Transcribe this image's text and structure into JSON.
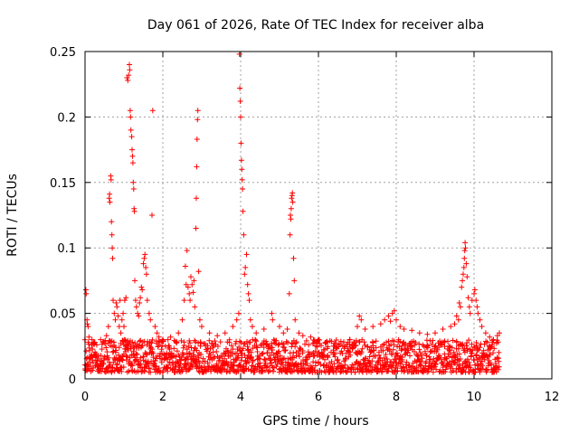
{
  "chart_data": {
    "type": "scatter",
    "title": "Day 061 of 2026, Rate Of TEC Index for receiver alba",
    "xlabel": "GPS time / hours",
    "ylabel": "ROTI / TECUs",
    "xlim": [
      0,
      12
    ],
    "ylim": [
      0,
      0.25
    ],
    "xticks": [
      0,
      2,
      4,
      6,
      8,
      10,
      12
    ],
    "yticks": [
      0,
      0.05,
      0.1,
      0.15,
      0.2,
      0.25
    ],
    "xtick_labels": [
      "0",
      "2",
      "4",
      "6",
      "8",
      "10",
      "12"
    ],
    "ytick_labels": [
      "0",
      "0.05",
      "0.1",
      "0.15",
      "0.2",
      "0.25"
    ],
    "grid": true,
    "marker": "+",
    "color": "#ff0000",
    "background_band": {
      "x_range": [
        0,
        10.65
      ],
      "y_low": 0.005,
      "y_high": 0.03,
      "x_step": 0.02,
      "points_per_step": 3
    },
    "series": [
      {
        "name": "ROTI",
        "points": [
          [
            0.02,
            0.068
          ],
          [
            0.03,
            0.065
          ],
          [
            0.05,
            0.045
          ],
          [
            0.06,
            0.042
          ],
          [
            0.08,
            0.04
          ],
          [
            0.1,
            0.032
          ],
          [
            0.18,
            0.03
          ],
          [
            0.25,
            0.028
          ],
          [
            0.3,
            0.026
          ],
          [
            0.4,
            0.03
          ],
          [
            0.55,
            0.033
          ],
          [
            0.6,
            0.04
          ],
          [
            0.62,
            0.138
          ],
          [
            0.63,
            0.141
          ],
          [
            0.64,
            0.135
          ],
          [
            0.66,
            0.155
          ],
          [
            0.67,
            0.152
          ],
          [
            0.68,
            0.12
          ],
          [
            0.69,
            0.11
          ],
          [
            0.7,
            0.1
          ],
          [
            0.71,
            0.092
          ],
          [
            0.72,
            0.06
          ],
          [
            0.75,
            0.05
          ],
          [
            0.78,
            0.045
          ],
          [
            0.8,
            0.058
          ],
          [
            0.82,
            0.055
          ],
          [
            0.85,
            0.048
          ],
          [
            0.88,
            0.04
          ],
          [
            0.9,
            0.06
          ],
          [
            0.92,
            0.035
          ],
          [
            0.95,
            0.045
          ],
          [
            0.98,
            0.05
          ],
          [
            1.0,
            0.04
          ],
          [
            1.02,
            0.06
          ],
          [
            1.05,
            0.062
          ],
          [
            1.08,
            0.23
          ],
          [
            1.1,
            0.228
          ],
          [
            1.12,
            0.232
          ],
          [
            1.14,
            0.24
          ],
          [
            1.15,
            0.236
          ],
          [
            1.16,
            0.205
          ],
          [
            1.17,
            0.2
          ],
          [
            1.18,
            0.19
          ],
          [
            1.2,
            0.185
          ],
          [
            1.21,
            0.175
          ],
          [
            1.22,
            0.17
          ],
          [
            1.23,
            0.165
          ],
          [
            1.24,
            0.15
          ],
          [
            1.25,
            0.145
          ],
          [
            1.26,
            0.13
          ],
          [
            1.27,
            0.128
          ],
          [
            1.28,
            0.075
          ],
          [
            1.3,
            0.06
          ],
          [
            1.32,
            0.055
          ],
          [
            1.35,
            0.05
          ],
          [
            1.38,
            0.048
          ],
          [
            1.4,
            0.058
          ],
          [
            1.42,
            0.062
          ],
          [
            1.45,
            0.07
          ],
          [
            1.47,
            0.068
          ],
          [
            1.5,
            0.088
          ],
          [
            1.52,
            0.092
          ],
          [
            1.54,
            0.095
          ],
          [
            1.56,
            0.085
          ],
          [
            1.58,
            0.08
          ],
          [
            1.6,
            0.06
          ],
          [
            1.65,
            0.05
          ],
          [
            1.68,
            0.045
          ],
          [
            1.72,
            0.125
          ],
          [
            1.74,
            0.205
          ],
          [
            1.8,
            0.04
          ],
          [
            1.85,
            0.035
          ],
          [
            1.9,
            0.032
          ],
          [
            2.0,
            0.03
          ],
          [
            2.2,
            0.032
          ],
          [
            2.4,
            0.035
          ],
          [
            2.5,
            0.045
          ],
          [
            2.55,
            0.06
          ],
          [
            2.58,
            0.086
          ],
          [
            2.6,
            0.072
          ],
          [
            2.62,
            0.098
          ],
          [
            2.65,
            0.07
          ],
          [
            2.68,
            0.065
          ],
          [
            2.7,
            0.06
          ],
          [
            2.72,
            0.078
          ],
          [
            2.75,
            0.072
          ],
          [
            2.78,
            0.066
          ],
          [
            2.8,
            0.075
          ],
          [
            2.82,
            0.055
          ],
          [
            2.85,
            0.115
          ],
          [
            2.86,
            0.138
          ],
          [
            2.87,
            0.162
          ],
          [
            2.88,
            0.183
          ],
          [
            2.89,
            0.198
          ],
          [
            2.9,
            0.205
          ],
          [
            2.92,
            0.082
          ],
          [
            2.95,
            0.045
          ],
          [
            3.0,
            0.04
          ],
          [
            3.2,
            0.035
          ],
          [
            3.4,
            0.033
          ],
          [
            3.6,
            0.035
          ],
          [
            3.8,
            0.04
          ],
          [
            3.9,
            0.045
          ],
          [
            3.95,
            0.05
          ],
          [
            3.97,
            0.248
          ],
          [
            3.98,
            0.222
          ],
          [
            3.99,
            0.212
          ],
          [
            4.0,
            0.2
          ],
          [
            4.01,
            0.18
          ],
          [
            4.02,
            0.167
          ],
          [
            4.03,
            0.16
          ],
          [
            4.04,
            0.152
          ],
          [
            4.05,
            0.145
          ],
          [
            4.06,
            0.128
          ],
          [
            4.08,
            0.11
          ],
          [
            4.1,
            0.08
          ],
          [
            4.12,
            0.085
          ],
          [
            4.15,
            0.095
          ],
          [
            4.18,
            0.072
          ],
          [
            4.2,
            0.065
          ],
          [
            4.22,
            0.06
          ],
          [
            4.25,
            0.045
          ],
          [
            4.3,
            0.04
          ],
          [
            4.4,
            0.035
          ],
          [
            4.6,
            0.038
          ],
          [
            4.8,
            0.05
          ],
          [
            4.82,
            0.045
          ],
          [
            5.0,
            0.04
          ],
          [
            5.1,
            0.035
          ],
          [
            5.2,
            0.038
          ],
          [
            5.25,
            0.065
          ],
          [
            5.27,
            0.11
          ],
          [
            5.28,
            0.125
          ],
          [
            5.29,
            0.122
          ],
          [
            5.3,
            0.13
          ],
          [
            5.31,
            0.138
          ],
          [
            5.32,
            0.14
          ],
          [
            5.33,
            0.142
          ],
          [
            5.34,
            0.135
          ],
          [
            5.36,
            0.092
          ],
          [
            5.38,
            0.075
          ],
          [
            5.4,
            0.045
          ],
          [
            5.5,
            0.035
          ],
          [
            5.6,
            0.033
          ],
          [
            5.8,
            0.032
          ],
          [
            6.0,
            0.03
          ],
          [
            6.2,
            0.028
          ],
          [
            6.4,
            0.027
          ],
          [
            6.8,
            0.03
          ],
          [
            7.0,
            0.04
          ],
          [
            7.05,
            0.048
          ],
          [
            7.1,
            0.045
          ],
          [
            7.2,
            0.038
          ],
          [
            7.4,
            0.04
          ],
          [
            7.6,
            0.042
          ],
          [
            7.7,
            0.045
          ],
          [
            7.8,
            0.048
          ],
          [
            7.85,
            0.044
          ],
          [
            7.9,
            0.05
          ],
          [
            7.95,
            0.052
          ],
          [
            8.0,
            0.045
          ],
          [
            8.1,
            0.04
          ],
          [
            8.2,
            0.038
          ],
          [
            8.4,
            0.037
          ],
          [
            8.6,
            0.035
          ],
          [
            8.8,
            0.034
          ],
          [
            9.0,
            0.035
          ],
          [
            9.2,
            0.038
          ],
          [
            9.4,
            0.04
          ],
          [
            9.5,
            0.042
          ],
          [
            9.55,
            0.048
          ],
          [
            9.6,
            0.045
          ],
          [
            9.62,
            0.058
          ],
          [
            9.65,
            0.055
          ],
          [
            9.68,
            0.07
          ],
          [
            9.7,
            0.075
          ],
          [
            9.72,
            0.08
          ],
          [
            9.74,
            0.085
          ],
          [
            9.75,
            0.092
          ],
          [
            9.76,
            0.098
          ],
          [
            9.77,
            0.104
          ],
          [
            9.78,
            0.1
          ],
          [
            9.8,
            0.088
          ],
          [
            9.82,
            0.078
          ],
          [
            9.85,
            0.062
          ],
          [
            9.88,
            0.055
          ],
          [
            9.9,
            0.05
          ],
          [
            9.95,
            0.06
          ],
          [
            10.0,
            0.065
          ],
          [
            10.02,
            0.068
          ],
          [
            10.05,
            0.06
          ],
          [
            10.08,
            0.055
          ],
          [
            10.1,
            0.05
          ],
          [
            10.15,
            0.045
          ],
          [
            10.2,
            0.04
          ],
          [
            10.3,
            0.035
          ],
          [
            10.4,
            0.032
          ],
          [
            10.5,
            0.03
          ],
          [
            10.6,
            0.033
          ],
          [
            10.65,
            0.035
          ]
        ]
      }
    ]
  }
}
